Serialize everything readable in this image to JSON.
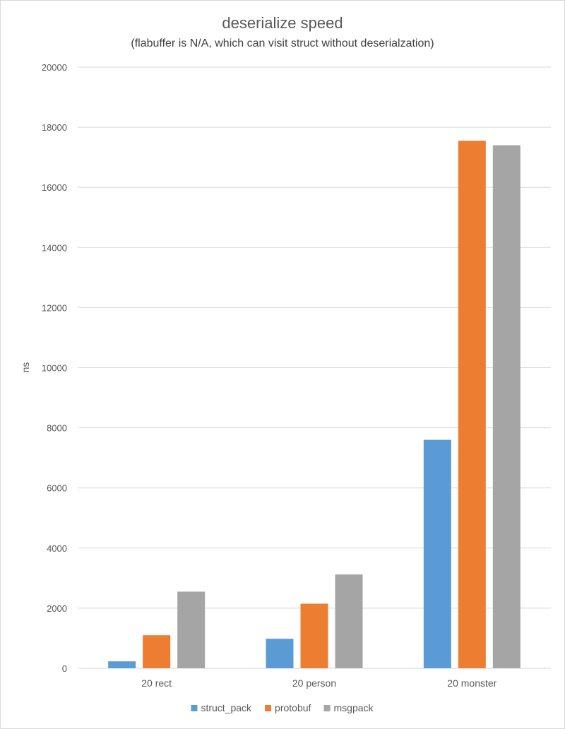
{
  "chart_data": {
    "type": "bar",
    "title": "deserialize speed",
    "subtitle": "(flabuffer is N/A, which can visit struct without deserialzation)",
    "xlabel": "",
    "ylabel": "ns",
    "ylim": [
      0,
      20000
    ],
    "yticks": [
      0,
      2000,
      4000,
      6000,
      8000,
      10000,
      12000,
      14000,
      16000,
      18000,
      20000
    ],
    "grid": true,
    "legend_position": "bottom",
    "categories": [
      "20 rect",
      "20 person",
      "20 monster"
    ],
    "series": [
      {
        "name": "struct_pack",
        "color": "#5b9bd5",
        "values": [
          230,
          980,
          7600
        ]
      },
      {
        "name": "protobuf",
        "color": "#ed7d31",
        "values": [
          1100,
          2150,
          17550
        ]
      },
      {
        "name": "msgpack",
        "color": "#a5a5a5",
        "values": [
          2550,
          3120,
          17400
        ]
      }
    ]
  }
}
